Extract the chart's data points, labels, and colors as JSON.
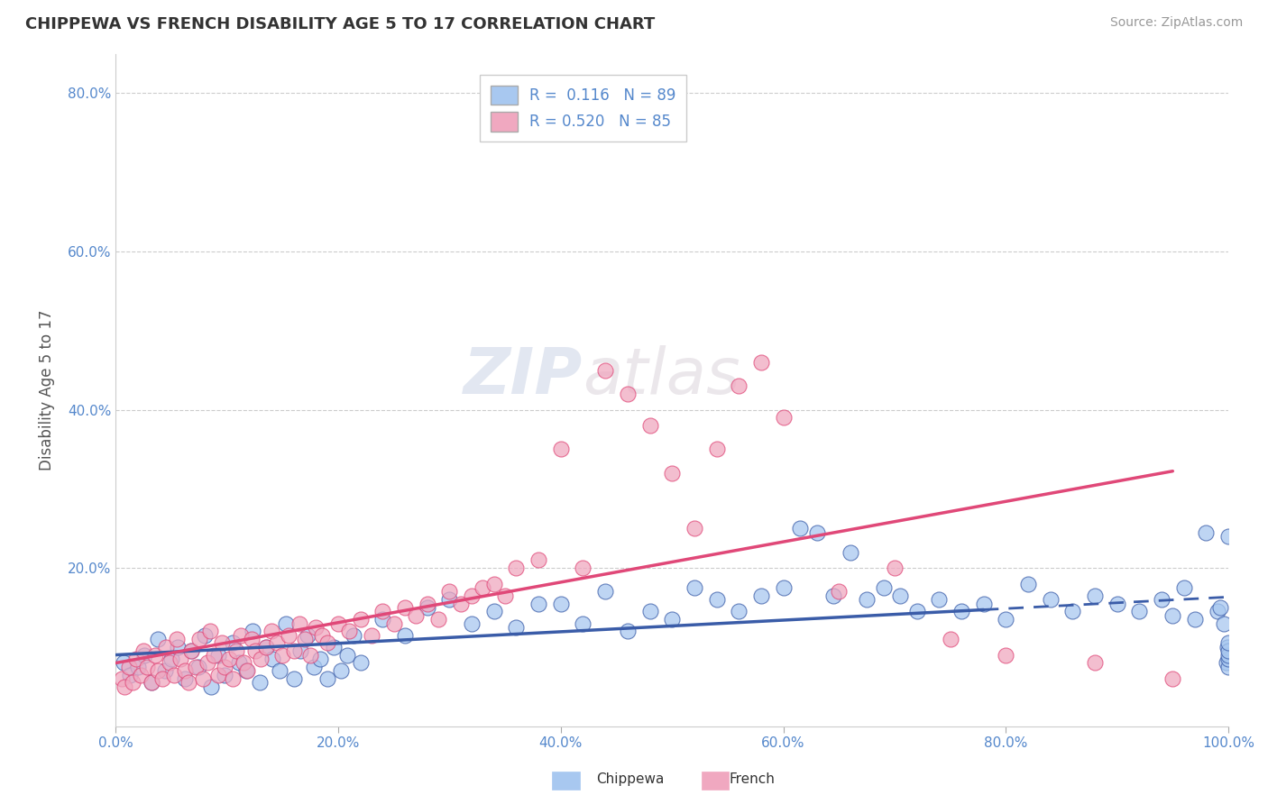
{
  "title": "CHIPPEWA VS FRENCH DISABILITY AGE 5 TO 17 CORRELATION CHART",
  "source": "Source: ZipAtlas.com",
  "ylabel": "Disability Age 5 to 17",
  "xlim": [
    0.0,
    1.0
  ],
  "ylim": [
    0.0,
    0.85
  ],
  "xtick_labels": [
    "0.0%",
    "20.0%",
    "40.0%",
    "60.0%",
    "80.0%",
    "100.0%"
  ],
  "xtick_vals": [
    0.0,
    0.2,
    0.4,
    0.6,
    0.8,
    1.0
  ],
  "ytick_labels": [
    "20.0%",
    "40.0%",
    "60.0%",
    "80.0%"
  ],
  "ytick_vals": [
    0.2,
    0.4,
    0.6,
    0.8
  ],
  "chippewa_color": "#a8c8f0",
  "french_color": "#f0a8c0",
  "chippewa_R": 0.116,
  "chippewa_N": 89,
  "french_R": 0.52,
  "french_N": 85,
  "chippewa_line_color": "#3a5ca8",
  "french_line_color": "#e04878",
  "background_color": "#ffffff",
  "tick_color": "#5588cc",
  "chippewa_x": [
    0.007,
    0.013,
    0.02,
    0.026,
    0.032,
    0.038,
    0.044,
    0.05,
    0.056,
    0.062,
    0.068,
    0.074,
    0.08,
    0.086,
    0.092,
    0.098,
    0.105,
    0.111,
    0.117,
    0.123,
    0.129,
    0.135,
    0.141,
    0.147,
    0.153,
    0.16,
    0.166,
    0.172,
    0.178,
    0.184,
    0.19,
    0.196,
    0.202,
    0.208,
    0.214,
    0.22,
    0.24,
    0.26,
    0.28,
    0.3,
    0.32,
    0.34,
    0.36,
    0.38,
    0.4,
    0.42,
    0.44,
    0.46,
    0.48,
    0.5,
    0.52,
    0.54,
    0.56,
    0.58,
    0.6,
    0.615,
    0.63,
    0.645,
    0.66,
    0.675,
    0.69,
    0.705,
    0.72,
    0.74,
    0.76,
    0.78,
    0.8,
    0.82,
    0.84,
    0.86,
    0.88,
    0.9,
    0.92,
    0.94,
    0.95,
    0.96,
    0.97,
    0.98,
    0.99,
    0.993,
    0.996,
    0.998,
    0.999,
    1.0,
    1.0,
    1.0,
    1.0,
    1.0,
    1.0
  ],
  "chippewa_y": [
    0.08,
    0.065,
    0.075,
    0.09,
    0.055,
    0.11,
    0.07,
    0.085,
    0.1,
    0.06,
    0.095,
    0.075,
    0.115,
    0.05,
    0.09,
    0.065,
    0.105,
    0.08,
    0.07,
    0.12,
    0.055,
    0.1,
    0.085,
    0.07,
    0.13,
    0.06,
    0.095,
    0.115,
    0.075,
    0.085,
    0.06,
    0.1,
    0.07,
    0.09,
    0.115,
    0.08,
    0.135,
    0.115,
    0.15,
    0.16,
    0.13,
    0.145,
    0.125,
    0.155,
    0.155,
    0.13,
    0.17,
    0.12,
    0.145,
    0.135,
    0.175,
    0.16,
    0.145,
    0.165,
    0.175,
    0.25,
    0.245,
    0.165,
    0.22,
    0.16,
    0.175,
    0.165,
    0.145,
    0.16,
    0.145,
    0.155,
    0.135,
    0.18,
    0.16,
    0.145,
    0.165,
    0.155,
    0.145,
    0.16,
    0.14,
    0.175,
    0.135,
    0.245,
    0.145,
    0.15,
    0.13,
    0.08,
    0.1,
    0.075,
    0.085,
    0.09,
    0.095,
    0.105,
    0.24
  ],
  "french_x": [
    0.005,
    0.008,
    0.012,
    0.015,
    0.018,
    0.022,
    0.025,
    0.028,
    0.032,
    0.035,
    0.038,
    0.042,
    0.045,
    0.048,
    0.052,
    0.055,
    0.058,
    0.062,
    0.065,
    0.068,
    0.072,
    0.075,
    0.078,
    0.082,
    0.085,
    0.088,
    0.092,
    0.095,
    0.098,
    0.102,
    0.105,
    0.108,
    0.112,
    0.115,
    0.118,
    0.122,
    0.125,
    0.13,
    0.135,
    0.14,
    0.145,
    0.15,
    0.155,
    0.16,
    0.165,
    0.17,
    0.175,
    0.18,
    0.185,
    0.19,
    0.2,
    0.21,
    0.22,
    0.23,
    0.24,
    0.25,
    0.26,
    0.27,
    0.28,
    0.29,
    0.3,
    0.31,
    0.32,
    0.33,
    0.34,
    0.35,
    0.36,
    0.38,
    0.4,
    0.42,
    0.44,
    0.46,
    0.48,
    0.5,
    0.52,
    0.54,
    0.56,
    0.58,
    0.6,
    0.65,
    0.7,
    0.75,
    0.8,
    0.88,
    0.95
  ],
  "french_y": [
    0.06,
    0.05,
    0.075,
    0.055,
    0.085,
    0.065,
    0.095,
    0.075,
    0.055,
    0.09,
    0.07,
    0.06,
    0.1,
    0.08,
    0.065,
    0.11,
    0.085,
    0.07,
    0.055,
    0.095,
    0.075,
    0.11,
    0.06,
    0.08,
    0.12,
    0.09,
    0.065,
    0.105,
    0.075,
    0.085,
    0.06,
    0.095,
    0.115,
    0.08,
    0.07,
    0.11,
    0.095,
    0.085,
    0.1,
    0.12,
    0.105,
    0.09,
    0.115,
    0.095,
    0.13,
    0.11,
    0.09,
    0.125,
    0.115,
    0.105,
    0.13,
    0.12,
    0.135,
    0.115,
    0.145,
    0.13,
    0.15,
    0.14,
    0.155,
    0.135,
    0.17,
    0.155,
    0.165,
    0.175,
    0.18,
    0.165,
    0.2,
    0.21,
    0.35,
    0.2,
    0.45,
    0.42,
    0.38,
    0.32,
    0.25,
    0.35,
    0.43,
    0.46,
    0.39,
    0.17,
    0.2,
    0.11,
    0.09,
    0.08,
    0.06
  ]
}
